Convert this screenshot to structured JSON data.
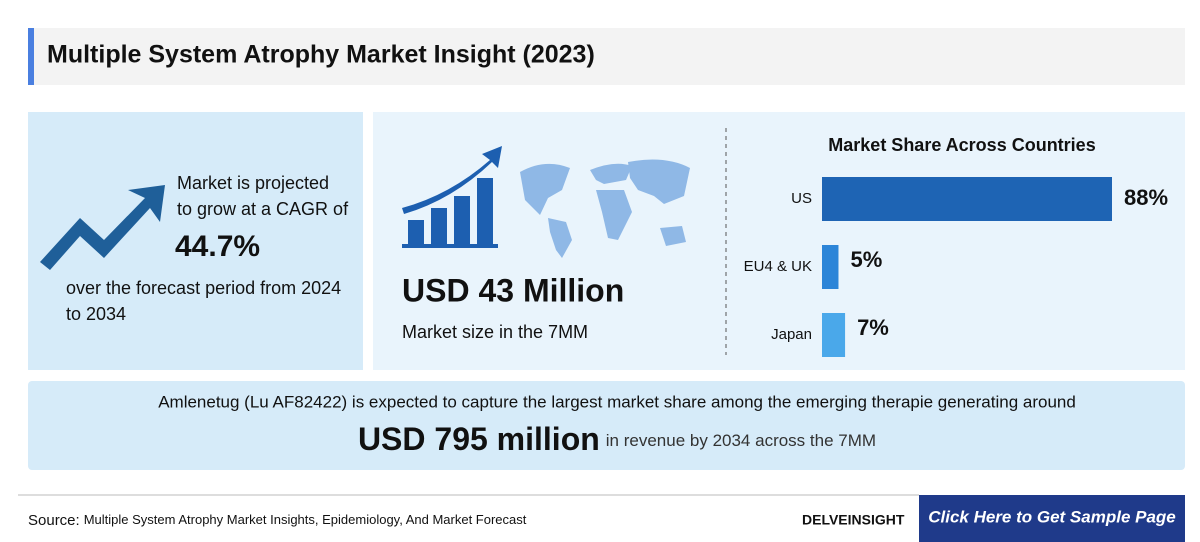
{
  "header": {
    "title": "Multiple System Atrophy Market Insight (2023)"
  },
  "cagr": {
    "lines": [
      "Market is projected",
      "to grow at a CAGR of"
    ],
    "value": "44.7%",
    "period_lines": [
      "over the forecast period from 2024",
      "to 2034"
    ]
  },
  "market_size": {
    "value": "USD 43 Million",
    "label": "Market size in the 7MM"
  },
  "chart_data": {
    "type": "bar",
    "orientation": "horizontal",
    "title": "Market Share Across Countries",
    "categories": [
      "US",
      "EU4 & UK",
      "Japan"
    ],
    "values": [
      88,
      5,
      7
    ],
    "value_labels": [
      "88%",
      "5%",
      "7%"
    ],
    "colors": [
      "#1e64b4",
      "#2c85d8",
      "#4aa8ea"
    ]
  },
  "highlight": {
    "text": "Amlenetug (Lu AF82422) is expected to capture the largest market share among the emerging therapie generating around",
    "amount": "USD 795 million",
    "suffix": "in revenue by 2034 across the 7MM"
  },
  "footer": {
    "source_label": "Source:",
    "source": "Multiple System Atrophy Market Insights, Epidemiology, And Market Forecast",
    "logo": "DELVEINSIGHT",
    "cta": "Click Here to Get Sample Page"
  }
}
